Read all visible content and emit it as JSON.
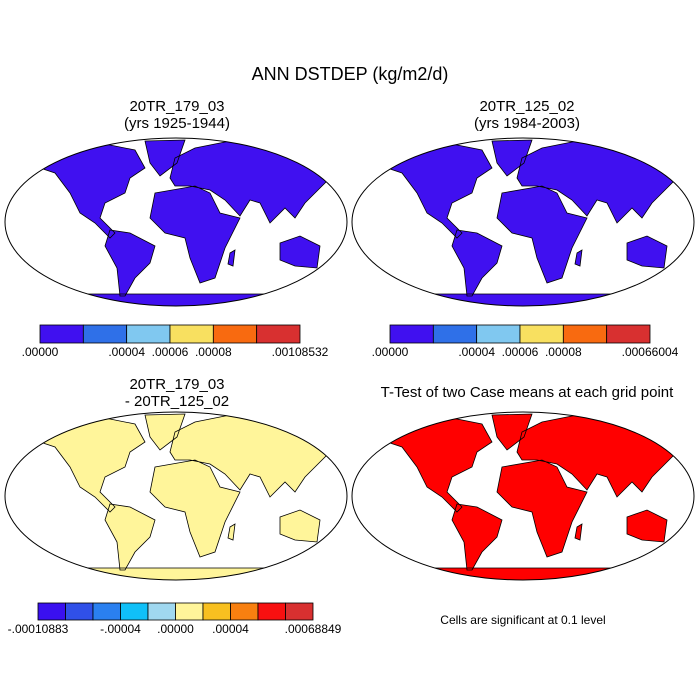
{
  "title": "ANN DSTDEP (kg/m2/d)",
  "panels": [
    {
      "title": "20TR_179_03",
      "subtitle": "(yrs 1925-1944)",
      "colorbar": {
        "colors": [
          "#4010f0",
          "#2f70e8",
          "#80c8f0",
          "#f8e060",
          "#f86a10",
          "#d83030"
        ],
        "labels": [
          ".00000",
          ".00004",
          ".00006",
          ".00008",
          ".00108532"
        ]
      }
    },
    {
      "title": "20TR_125_02",
      "subtitle": "(yrs 1984-2003)",
      "colorbar": {
        "colors": [
          "#4010f0",
          "#2f70e8",
          "#80c8f0",
          "#f8e060",
          "#f86a10",
          "#d83030"
        ],
        "labels": [
          ".00000",
          ".00004",
          ".00006",
          ".00008",
          ".00066004"
        ]
      }
    },
    {
      "title": "20TR_179_03",
      "subtitle": "- 20TR_125_02",
      "colorbar": {
        "colors": [
          "#3a10f0",
          "#3050e8",
          "#2a80f0",
          "#10c0f8",
          "#a0d8f0",
          "#fff59a",
          "#f8c020",
          "#f88010",
          "#f81010",
          "#d83030"
        ],
        "labels": [
          "-.00010883",
          "-.00004",
          ".00000",
          ".00004",
          ".00068849"
        ]
      }
    },
    {
      "title": "T-Test of two Case means at each grid point",
      "note": "Cells are significant at 0.1 level"
    }
  ]
}
